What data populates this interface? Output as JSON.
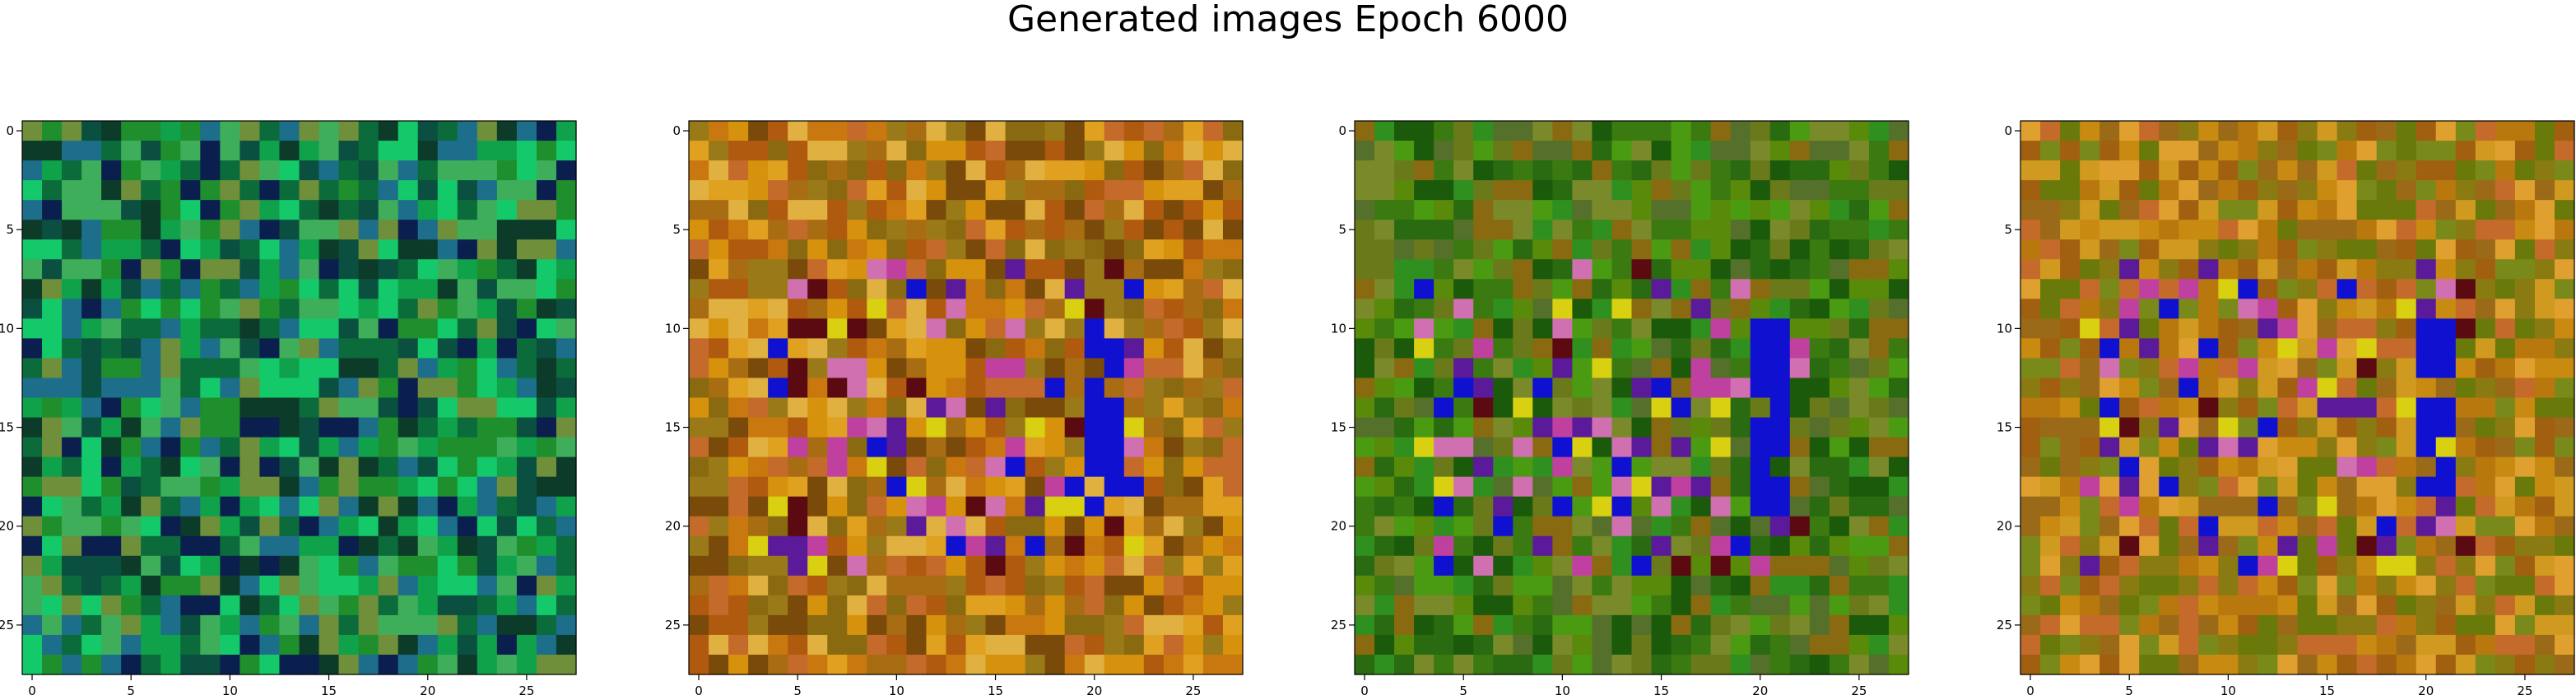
{
  "figure": {
    "title": "Generated images Epoch 6000"
  },
  "chart_data": [
    {
      "type": "heatmap",
      "grid": "28x28 RGB image",
      "palette": "green",
      "x_ticks": [
        0,
        5,
        10,
        15,
        20,
        25
      ],
      "y_ticks": [
        0,
        5,
        10,
        15,
        20,
        25
      ],
      "xlim": [
        -0.5,
        27.5
      ],
      "ylim": [
        27.5,
        -0.5
      ],
      "colors": [
        "#0b6b3a",
        "#0fa24a",
        "#1f8f2e",
        "#0a4f3f",
        "#1d6e8a",
        "#0b1f4f",
        "#3fae5a",
        "#6f8f3a",
        "#0c3b2a",
        "#14c96a"
      ]
    },
    {
      "type": "heatmap",
      "grid": "28x28 RGB image",
      "palette": "orange",
      "x_ticks": [
        0,
        5,
        10,
        15,
        20,
        25
      ],
      "y_ticks": [
        0,
        5,
        10,
        15,
        20,
        25
      ],
      "xlim": [
        -0.5,
        27.5
      ],
      "ylim": [
        27.5,
        -0.5
      ],
      "colors": [
        "#c8780e",
        "#d6920c",
        "#a86c12",
        "#e0a020",
        "#b05a10",
        "#8a6a10",
        "#c46a2a",
        "#9a7a18",
        "#e0b040",
        "#7a4a0a"
      ]
    },
    {
      "type": "heatmap",
      "grid": "28x28 RGB image",
      "palette": "olive",
      "x_ticks": [
        0,
        5,
        10,
        15,
        20,
        25
      ],
      "y_ticks": [
        0,
        5,
        10,
        15,
        20,
        25
      ],
      "xlim": [
        -0.5,
        27.5
      ],
      "ylim": [
        27.5,
        -0.5
      ],
      "colors": [
        "#3a7a10",
        "#5a8a0a",
        "#2a6a10",
        "#6a7a1a",
        "#4a9a12",
        "#1a5a0a",
        "#7a8a2a",
        "#8a6a10",
        "#2f8f1f",
        "#55702a"
      ]
    },
    {
      "type": "heatmap",
      "grid": "28x28 RGB image",
      "palette": "amber",
      "x_ticks": [
        0,
        5,
        10,
        15,
        20,
        25
      ],
      "y_ticks": [
        0,
        5,
        10,
        15,
        20,
        25
      ],
      "xlim": [
        -0.5,
        27.5
      ],
      "ylim": [
        27.5,
        -0.5
      ],
      "colors": [
        "#b8780e",
        "#c88a10",
        "#8a7a12",
        "#d09a20",
        "#a06010",
        "#7a8a1a",
        "#c46a2a",
        "#9a6a18",
        "#e0a030",
        "#6a7a0a"
      ]
    }
  ],
  "accent_colors": {
    "magenta": "#c040a0",
    "purple": "#5a1a9a",
    "blue": "#1010d0",
    "pink": "#d070b0",
    "dark_red": "#5a0a10",
    "yellow": "#d8d010"
  }
}
